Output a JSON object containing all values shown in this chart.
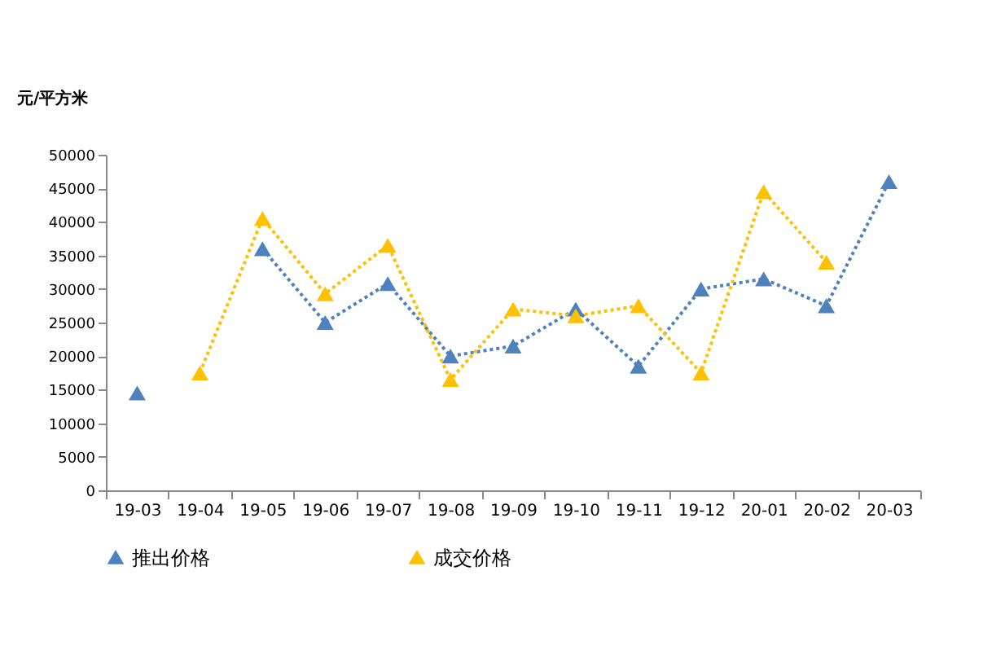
{
  "chart_data": {
    "type": "line",
    "ylabel": "元/平方米",
    "categories": [
      "19-03",
      "19-04",
      "19-05",
      "19-06",
      "19-07",
      "19-08",
      "19-09",
      "19-10",
      "19-11",
      "19-12",
      "20-01",
      "20-02",
      "20-03"
    ],
    "series": [
      {
        "name": "推出价格",
        "color": "#4f81bd",
        "values": [
          14500,
          null,
          36000,
          25000,
          30800,
          20000,
          21500,
          27000,
          18500,
          30000,
          31500,
          27500,
          46000
        ]
      },
      {
        "name": "成交价格",
        "color": "#ffc000",
        "values": [
          null,
          17500,
          40500,
          29300,
          36500,
          16500,
          27000,
          26000,
          27500,
          17500,
          44500,
          34000,
          null
        ]
      }
    ],
    "ylim": [
      0,
      50000
    ],
    "yticks": [
      0,
      5000,
      10000,
      15000,
      20000,
      25000,
      30000,
      35000,
      40000,
      45000,
      50000
    ],
    "grid": false,
    "legend": "bottom",
    "marker": "triangle",
    "line_style": "dotted"
  }
}
